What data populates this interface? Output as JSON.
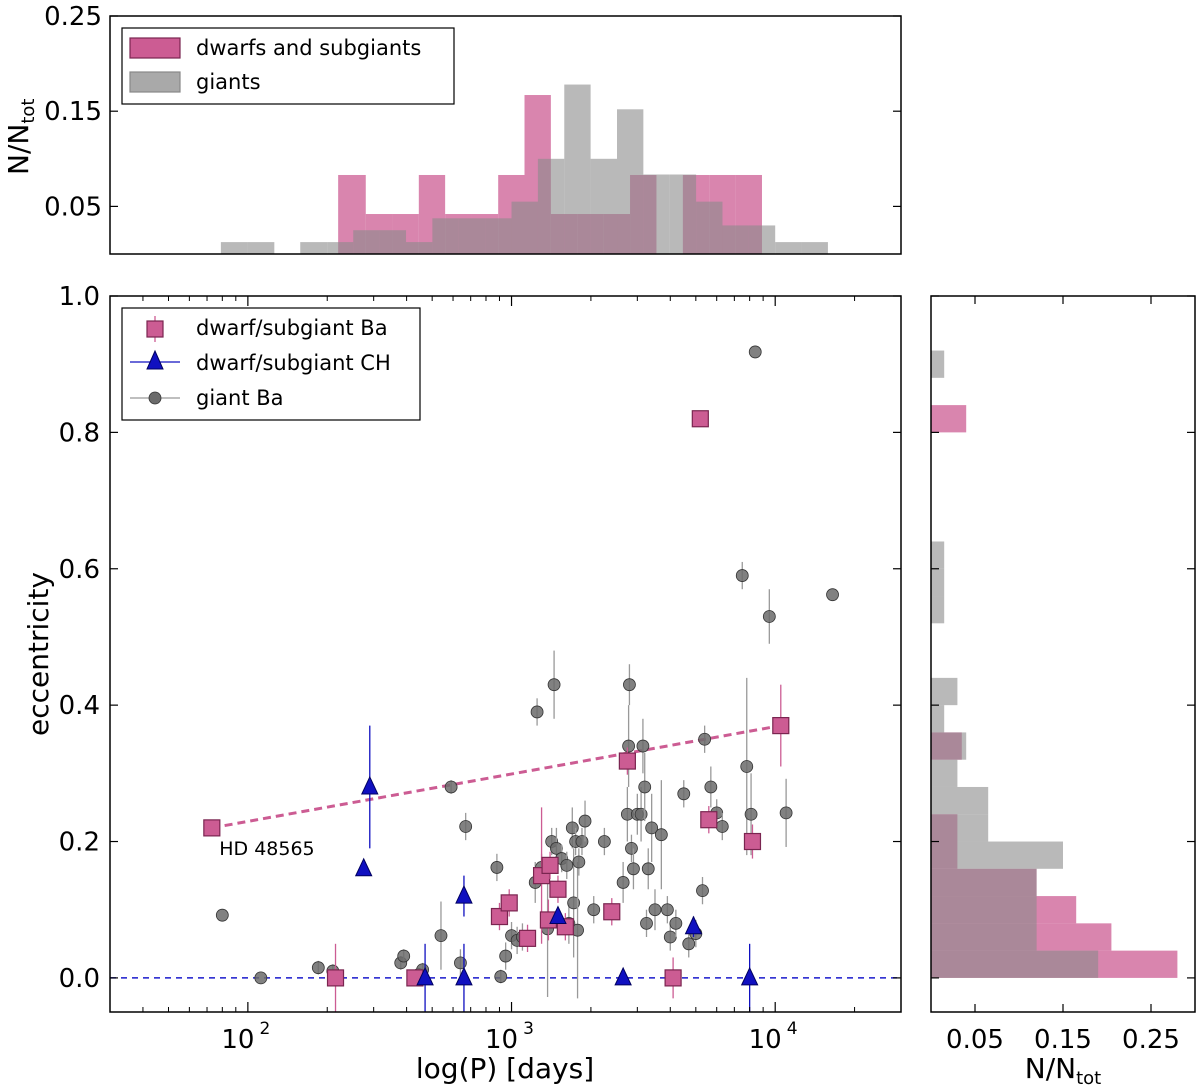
{
  "colors": {
    "dwarf": "#cc5c93",
    "dwarf_edge": "#7a2550",
    "giant": "#a9a9a9",
    "giant_edge": "#555555",
    "ch": "#1010c0",
    "trend": "#cc5c93",
    "zero_line": "#1a1acc"
  },
  "chart_data": [
    {
      "id": "top_histogram",
      "type": "bar",
      "ylabel": "N/N_tot",
      "ylabel_main": "N/N",
      "ylabel_sub": "tot",
      "xscale": "log",
      "xlim": [
        30,
        30000
      ],
      "ylim": [
        0.0,
        0.25
      ],
      "yticks": [
        0.05,
        0.15,
        0.25
      ],
      "ytick_labels": [
        "0.05",
        "0.15",
        "0.25"
      ],
      "legend": {
        "position": "top-left",
        "entries": [
          "dwarfs and subgiants",
          "giants"
        ]
      },
      "series": [
        {
          "name": "dwarfs and subgiants",
          "bins": [
            {
              "from": 220,
              "to": 280,
              "value": 0.083
            },
            {
              "from": 280,
              "to": 355,
              "value": 0.042
            },
            {
              "from": 355,
              "to": 445,
              "value": 0.042
            },
            {
              "from": 445,
              "to": 560,
              "value": 0.083
            },
            {
              "from": 560,
              "to": 705,
              "value": 0.042
            },
            {
              "from": 705,
              "to": 890,
              "value": 0.042
            },
            {
              "from": 890,
              "to": 1120,
              "value": 0.083
            },
            {
              "from": 1120,
              "to": 1410,
              "value": 0.167
            },
            {
              "from": 1410,
              "to": 1775,
              "value": 0.042
            },
            {
              "from": 1775,
              "to": 2235,
              "value": 0.042
            },
            {
              "from": 2235,
              "to": 2815,
              "value": 0.042
            },
            {
              "from": 2815,
              "to": 3545,
              "value": 0.083
            },
            {
              "from": 4465,
              "to": 5620,
              "value": 0.083
            },
            {
              "from": 5620,
              "to": 7080,
              "value": 0.083
            },
            {
              "from": 7080,
              "to": 8910,
              "value": 0.083
            }
          ]
        },
        {
          "name": "giants",
          "bins": [
            {
              "from": 79,
              "to": 100,
              "value": 0.0125
            },
            {
              "from": 100,
              "to": 126,
              "value": 0.0125
            },
            {
              "from": 158,
              "to": 200,
              "value": 0.0125
            },
            {
              "from": 200,
              "to": 251,
              "value": 0.0125
            },
            {
              "from": 251,
              "to": 316,
              "value": 0.025
            },
            {
              "from": 316,
              "to": 398,
              "value": 0.025
            },
            {
              "from": 398,
              "to": 501,
              "value": 0.0125
            },
            {
              "from": 501,
              "to": 631,
              "value": 0.0375
            },
            {
              "from": 631,
              "to": 794,
              "value": 0.0375
            },
            {
              "from": 794,
              "to": 1000,
              "value": 0.0375
            },
            {
              "from": 1000,
              "to": 1259,
              "value": 0.055
            },
            {
              "from": 1259,
              "to": 1585,
              "value": 0.1
            },
            {
              "from": 1585,
              "to": 1995,
              "value": 0.178
            },
            {
              "from": 1995,
              "to": 2512,
              "value": 0.1
            },
            {
              "from": 2512,
              "to": 3162,
              "value": 0.152
            },
            {
              "from": 3162,
              "to": 3981,
              "value": 0.0835
            },
            {
              "from": 3981,
              "to": 5012,
              "value": 0.0835
            },
            {
              "from": 5012,
              "to": 6310,
              "value": 0.055
            },
            {
              "from": 6310,
              "to": 7943,
              "value": 0.03
            },
            {
              "from": 7943,
              "to": 10000,
              "value": 0.03
            },
            {
              "from": 10000,
              "to": 12589,
              "value": 0.0125
            },
            {
              "from": 12589,
              "to": 15849,
              "value": 0.0125
            }
          ]
        }
      ]
    },
    {
      "id": "scatter",
      "type": "scatter",
      "xlabel": "log(P) [days]",
      "ylabel": "eccentricity",
      "xscale": "log",
      "xlim": [
        30,
        30000
      ],
      "ylim": [
        -0.05,
        1.0
      ],
      "xticks": [
        100,
        1000,
        10000
      ],
      "xtick_base": "10",
      "xtick_exps": [
        "2",
        "3",
        "4"
      ],
      "yticks": [
        0.0,
        0.2,
        0.4,
        0.6,
        0.8,
        1.0
      ],
      "ytick_labels": [
        "0.0",
        "0.2",
        "0.4",
        "0.6",
        "0.8",
        "1.0"
      ],
      "legend": {
        "position": "top-left",
        "entries": [
          "dwarf/subgiant Ba",
          "dwarf/subgiant CH",
          "giant Ba"
        ]
      },
      "annotation": {
        "text": "HD 48565",
        "x": 85,
        "y": 0.18
      },
      "trend_line": {
        "x": [
          73,
          10500
        ],
        "y": [
          0.22,
          0.37
        ]
      },
      "zero_line": 0.0,
      "series": [
        {
          "name": "dwarf/subgiant Ba",
          "points": [
            {
              "x": 73,
              "y": 0.22,
              "err": 0.0
            },
            {
              "x": 215,
              "y": 0.0,
              "err": 0.05
            },
            {
              "x": 430,
              "y": 0.0,
              "err": 0.0
            },
            {
              "x": 900,
              "y": 0.09,
              "err": 0.02
            },
            {
              "x": 980,
              "y": 0.11,
              "err": 0.02
            },
            {
              "x": 1150,
              "y": 0.058,
              "err": 0.02
            },
            {
              "x": 1300,
              "y": 0.15,
              "err": 0.1
            },
            {
              "x": 1400,
              "y": 0.165,
              "err": 0.02
            },
            {
              "x": 1380,
              "y": 0.085,
              "err": 0.03
            },
            {
              "x": 1500,
              "y": 0.13,
              "err": 0.02
            },
            {
              "x": 1600,
              "y": 0.075,
              "err": 0.02
            },
            {
              "x": 2400,
              "y": 0.097,
              "err": 0.02
            },
            {
              "x": 2750,
              "y": 0.318,
              "err": 0.02
            },
            {
              "x": 4100,
              "y": 0.0,
              "err": 0.03
            },
            {
              "x": 5200,
              "y": 0.82,
              "err": 0.0
            },
            {
              "x": 5600,
              "y": 0.232,
              "err": 0.02
            },
            {
              "x": 8200,
              "y": 0.2,
              "err": 0.025
            },
            {
              "x": 10500,
              "y": 0.37,
              "err": 0.06
            }
          ]
        },
        {
          "name": "dwarf/subgiant CH",
          "points": [
            {
              "x": 275,
              "y": 0.16,
              "err": 0.0
            },
            {
              "x": 290,
              "y": 0.28,
              "err": 0.09
            },
            {
              "x": 470,
              "y": 0.0,
              "err": 0.05
            },
            {
              "x": 660,
              "y": 0.12,
              "err": 0.03
            },
            {
              "x": 660,
              "y": 0.0,
              "err": 0.05
            },
            {
              "x": 1500,
              "y": 0.09,
              "err": 0.0
            },
            {
              "x": 2650,
              "y": 0.0,
              "err": 0.0
            },
            {
              "x": 4900,
              "y": 0.075,
              "err": 0.015
            },
            {
              "x": 8000,
              "y": 0.0,
              "err": 0.05
            }
          ]
        },
        {
          "name": "giant Ba",
          "points": [
            {
              "x": 80,
              "y": 0.092,
              "err": 0.0
            },
            {
              "x": 112,
              "y": 0.0,
              "err": 0.0
            },
            {
              "x": 185,
              "y": 0.015,
              "err": 0.01
            },
            {
              "x": 210,
              "y": 0.01,
              "err": 0.01
            },
            {
              "x": 380,
              "y": 0.022,
              "err": 0.01
            },
            {
              "x": 390,
              "y": 0.032,
              "err": 0.01
            },
            {
              "x": 445,
              "y": 0.005,
              "err": 0.01
            },
            {
              "x": 460,
              "y": 0.012,
              "err": 0.01
            },
            {
              "x": 540,
              "y": 0.062,
              "err": 0.05
            },
            {
              "x": 590,
              "y": 0.28,
              "err": 0.01
            },
            {
              "x": 640,
              "y": 0.022,
              "err": 0.02
            },
            {
              "x": 670,
              "y": 0.222,
              "err": 0.02
            },
            {
              "x": 880,
              "y": 0.162,
              "err": 0.02
            },
            {
              "x": 910,
              "y": 0.002,
              "err": 0.01
            },
            {
              "x": 950,
              "y": 0.032,
              "err": 0.02
            },
            {
              "x": 1000,
              "y": 0.062,
              "err": 0.02
            },
            {
              "x": 1050,
              "y": 0.055,
              "err": 0.02
            },
            {
              "x": 1100,
              "y": 0.06,
              "err": 0.02
            },
            {
              "x": 1230,
              "y": 0.14,
              "err": 0.03
            },
            {
              "x": 1250,
              "y": 0.39,
              "err": 0.02
            },
            {
              "x": 1300,
              "y": 0.162,
              "err": 0.02
            },
            {
              "x": 1370,
              "y": 0.072,
              "err": 0.1
            },
            {
              "x": 1420,
              "y": 0.2,
              "err": 0.02
            },
            {
              "x": 1450,
              "y": 0.43,
              "err": 0.05
            },
            {
              "x": 1480,
              "y": 0.19,
              "err": 0.03
            },
            {
              "x": 1550,
              "y": 0.175,
              "err": 0.02
            },
            {
              "x": 1620,
              "y": 0.165,
              "err": 0.02
            },
            {
              "x": 1650,
              "y": 0.08,
              "err": 0.03
            },
            {
              "x": 1700,
              "y": 0.22,
              "err": 0.03
            },
            {
              "x": 1720,
              "y": 0.11,
              "err": 0.08
            },
            {
              "x": 1750,
              "y": 0.2,
              "err": 0.02
            },
            {
              "x": 1780,
              "y": 0.07,
              "err": 0.1
            },
            {
              "x": 1800,
              "y": 0.17,
              "err": 0.02
            },
            {
              "x": 1850,
              "y": 0.2,
              "err": 0.02
            },
            {
              "x": 1900,
              "y": 0.23,
              "err": 0.03
            },
            {
              "x": 2050,
              "y": 0.1,
              "err": 0.02
            },
            {
              "x": 2250,
              "y": 0.2,
              "err": 0.02
            },
            {
              "x": 2650,
              "y": 0.14,
              "err": 0.03
            },
            {
              "x": 2750,
              "y": 0.24,
              "err": 0.04
            },
            {
              "x": 2780,
              "y": 0.34,
              "err": 0.06
            },
            {
              "x": 2800,
              "y": 0.43,
              "err": 0.03
            },
            {
              "x": 2850,
              "y": 0.19,
              "err": 0.02
            },
            {
              "x": 2900,
              "y": 0.16,
              "err": 0.03
            },
            {
              "x": 3000,
              "y": 0.24,
              "err": 0.03
            },
            {
              "x": 3100,
              "y": 0.24,
              "err": 0.04
            },
            {
              "x": 3150,
              "y": 0.34,
              "err": 0.04
            },
            {
              "x": 3200,
              "y": 0.28,
              "err": 0.05
            },
            {
              "x": 3250,
              "y": 0.08,
              "err": 0.02
            },
            {
              "x": 3300,
              "y": 0.16,
              "err": 0.03
            },
            {
              "x": 3400,
              "y": 0.22,
              "err": 0.05
            },
            {
              "x": 3500,
              "y": 0.1,
              "err": 0.03
            },
            {
              "x": 3700,
              "y": 0.21,
              "err": 0.08
            },
            {
              "x": 3900,
              "y": 0.1,
              "err": 0.02
            },
            {
              "x": 4000,
              "y": 0.06,
              "err": 0.02
            },
            {
              "x": 4200,
              "y": 0.08,
              "err": 0.02
            },
            {
              "x": 4500,
              "y": 0.27,
              "err": 0.02
            },
            {
              "x": 4700,
              "y": 0.05,
              "err": 0.02
            },
            {
              "x": 5000,
              "y": 0.065,
              "err": 0.02
            },
            {
              "x": 5300,
              "y": 0.128,
              "err": 0.02
            },
            {
              "x": 5400,
              "y": 0.35,
              "err": 0.02
            },
            {
              "x": 5700,
              "y": 0.28,
              "err": 0.03
            },
            {
              "x": 6000,
              "y": 0.242,
              "err": 0.02
            },
            {
              "x": 6300,
              "y": 0.222,
              "err": 0.02
            },
            {
              "x": 7500,
              "y": 0.59,
              "err": 0.02
            },
            {
              "x": 7800,
              "y": 0.31,
              "err": 0.13
            },
            {
              "x": 8100,
              "y": 0.24,
              "err": 0.06
            },
            {
              "x": 8400,
              "y": 0.918,
              "err": 0.0
            },
            {
              "x": 9500,
              "y": 0.53,
              "err": 0.04
            },
            {
              "x": 11000,
              "y": 0.242,
              "err": 0.05
            },
            {
              "x": 16500,
              "y": 0.562,
              "err": 0.0
            }
          ]
        }
      ]
    },
    {
      "id": "right_histogram",
      "type": "bar",
      "orientation": "horizontal",
      "xlabel": "N/N_tot",
      "xlabel_main": "N/N",
      "xlabel_sub": "tot",
      "xlim": [
        0.0,
        0.3
      ],
      "xticks": [
        0.05,
        0.15,
        0.25
      ],
      "xtick_labels": [
        "0.05",
        "0.15",
        "0.25"
      ],
      "series": [
        {
          "name": "dwarfs and subgiants",
          "bins": [
            {
              "from": 0.0,
              "to": 0.04,
              "value": 0.28
            },
            {
              "from": 0.04,
              "to": 0.08,
              "value": 0.205
            },
            {
              "from": 0.08,
              "to": 0.12,
              "value": 0.165
            },
            {
              "from": 0.12,
              "to": 0.16,
              "value": 0.12
            },
            {
              "from": 0.16,
              "to": 0.2,
              "value": 0.03
            },
            {
              "from": 0.2,
              "to": 0.24,
              "value": 0.03
            },
            {
              "from": 0.32,
              "to": 0.36,
              "value": 0.035
            },
            {
              "from": 0.8,
              "to": 0.84,
              "value": 0.04
            }
          ]
        },
        {
          "name": "giants",
          "bins": [
            {
              "from": 0.0,
              "to": 0.04,
              "value": 0.19
            },
            {
              "from": 0.04,
              "to": 0.08,
              "value": 0.12
            },
            {
              "from": 0.08,
              "to": 0.12,
              "value": 0.12
            },
            {
              "from": 0.12,
              "to": 0.16,
              "value": 0.12
            },
            {
              "from": 0.16,
              "to": 0.2,
              "value": 0.15
            },
            {
              "from": 0.2,
              "to": 0.24,
              "value": 0.065
            },
            {
              "from": 0.24,
              "to": 0.28,
              "value": 0.065
            },
            {
              "from": 0.28,
              "to": 0.32,
              "value": 0.03
            },
            {
              "from": 0.32,
              "to": 0.36,
              "value": 0.04
            },
            {
              "from": 0.36,
              "to": 0.4,
              "value": 0.015
            },
            {
              "from": 0.4,
              "to": 0.44,
              "value": 0.03
            },
            {
              "from": 0.52,
              "to": 0.56,
              "value": 0.015
            },
            {
              "from": 0.56,
              "to": 0.6,
              "value": 0.015
            },
            {
              "from": 0.6,
              "to": 0.64,
              "value": 0.015
            },
            {
              "from": 0.88,
              "to": 0.92,
              "value": 0.015
            }
          ]
        }
      ]
    }
  ]
}
